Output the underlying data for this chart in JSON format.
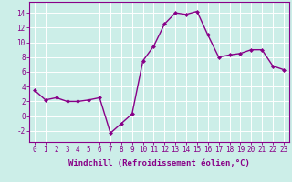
{
  "x": [
    0,
    1,
    2,
    3,
    4,
    5,
    6,
    7,
    8,
    9,
    10,
    11,
    12,
    13,
    14,
    15,
    16,
    17,
    18,
    19,
    20,
    21,
    22,
    23
  ],
  "y": [
    3.5,
    2.2,
    2.5,
    2.0,
    2.0,
    2.2,
    2.5,
    -2.3,
    -1.0,
    0.3,
    7.5,
    9.5,
    12.5,
    14.0,
    13.8,
    14.2,
    11.0,
    8.0,
    8.3,
    8.5,
    9.0,
    9.0,
    6.8,
    6.3
  ],
  "line_color": "#880088",
  "marker": "D",
  "marker_size": 2.0,
  "bg_color": "#cceee8",
  "grid_color": "#ffffff",
  "xlabel": "Windchill (Refroidissement éolien,°C)",
  "xlabel_fontsize": 6.5,
  "tick_fontsize": 5.5,
  "xlim": [
    -0.5,
    23.5
  ],
  "ylim": [
    -3.5,
    15.5
  ],
  "yticks": [
    -2,
    0,
    2,
    4,
    6,
    8,
    10,
    12,
    14
  ],
  "xtick_labels": [
    "0",
    "1",
    "2",
    "3",
    "4",
    "5",
    "6",
    "7",
    "8",
    "9",
    "10",
    "11",
    "12",
    "13",
    "14",
    "15",
    "16",
    "17",
    "18",
    "19",
    "20",
    "21",
    "22",
    "23"
  ],
  "line_width": 1.0
}
